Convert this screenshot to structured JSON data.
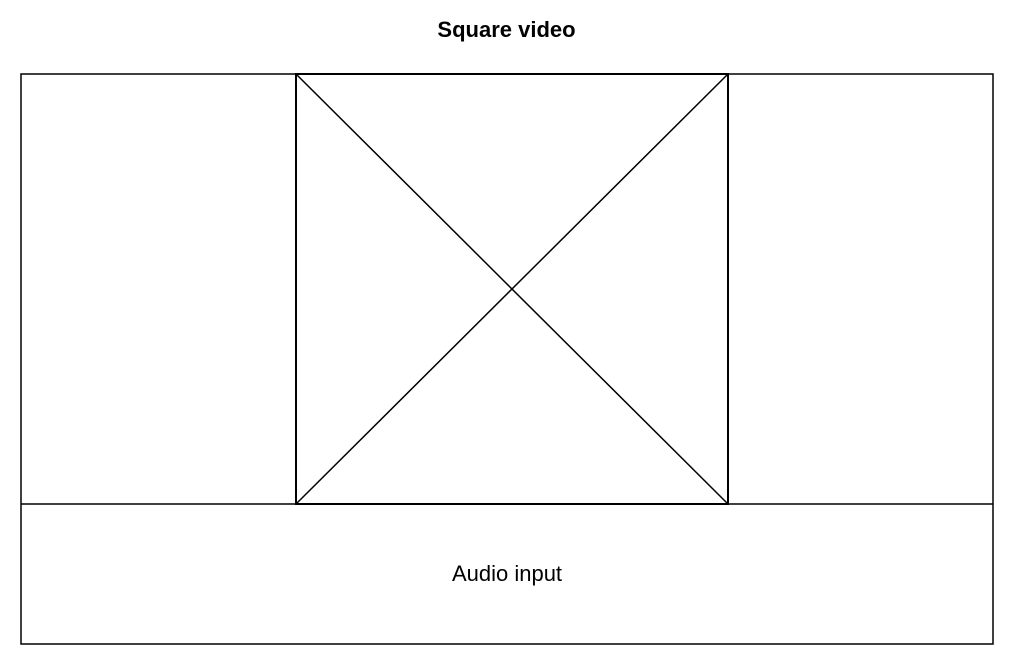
{
  "title": "Square video",
  "audio": {
    "label": "Audio input"
  },
  "video": {
    "placeholder_icon": "cross-placeholder-icon"
  },
  "colors": {
    "stroke": "#000000",
    "background": "#ffffff"
  }
}
